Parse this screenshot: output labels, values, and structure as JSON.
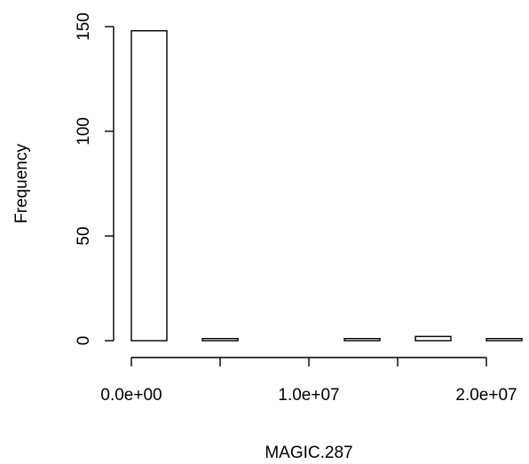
{
  "chart_data": {
    "type": "bar",
    "title": "",
    "xlabel": "MAGIC.287",
    "ylabel": "Frequency",
    "bins": [
      {
        "x0": 0,
        "x1": 2000000,
        "count": 148
      },
      {
        "x0": 2000000,
        "x1": 4000000,
        "count": 0
      },
      {
        "x0": 4000000,
        "x1": 6000000,
        "count": 1
      },
      {
        "x0": 6000000,
        "x1": 8000000,
        "count": 0
      },
      {
        "x0": 8000000,
        "x1": 10000000,
        "count": 0
      },
      {
        "x0": 10000000,
        "x1": 12000000,
        "count": 0
      },
      {
        "x0": 12000000,
        "x1": 14000000,
        "count": 1
      },
      {
        "x0": 14000000,
        "x1": 16000000,
        "count": 0
      },
      {
        "x0": 16000000,
        "x1": 18000000,
        "count": 2
      },
      {
        "x0": 18000000,
        "x1": 20000000,
        "count": 0
      },
      {
        "x0": 20000000,
        "x1": 22000000,
        "count": 1
      }
    ],
    "x_ticks": [
      0,
      5000000,
      10000000,
      15000000,
      20000000
    ],
    "x_tick_labels": [
      "0.0e+00",
      "1.0e+07",
      "2.0e+07"
    ],
    "x_tick_label_values": [
      0,
      10000000,
      20000000
    ],
    "y_ticks": [
      0,
      50,
      100,
      150
    ],
    "y_tick_labels": [
      "0",
      "50",
      "100",
      "150"
    ],
    "xlim": [
      0,
      22000000
    ],
    "ylim": [
      0,
      150
    ],
    "grid": false,
    "legend": "none",
    "colors": {
      "bar_fill": "#ffffff",
      "bar_stroke": "#000000",
      "axis": "#000000"
    }
  }
}
